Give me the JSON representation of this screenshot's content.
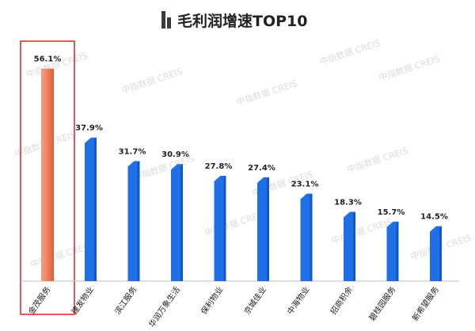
{
  "watermark": "中指数据 CREIS",
  "chart_data": {
    "type": "bar",
    "title": "毛利润增速TOP10",
    "categories": [
      "金茂服务",
      "建发物业",
      "滨江服务",
      "华润万象生活",
      "保利物业",
      "京城佳业",
      "中海物业",
      "招商积余",
      "碧桂园服务",
      "新希望服务"
    ],
    "values": [
      56.1,
      37.9,
      31.7,
      30.9,
      27.8,
      27.4,
      23.1,
      18.3,
      15.7,
      14.5
    ],
    "value_labels": [
      "56.1%",
      "37.9%",
      "31.7%",
      "30.9%",
      "27.8%",
      "27.4%",
      "23.1%",
      "18.3%",
      "15.7%",
      "14.5%"
    ],
    "highlight_index": 0,
    "ylim": [
      0,
      60
    ],
    "colors": {
      "bar": "#1f6fe6",
      "bar_side": "#1257c4",
      "highlight_bar": "#ee7a58",
      "highlight_side": "#d65e3c",
      "highlight_box": "#e02020",
      "axis": "#bfbfbf",
      "title_icon": "#3a3a3a"
    }
  }
}
